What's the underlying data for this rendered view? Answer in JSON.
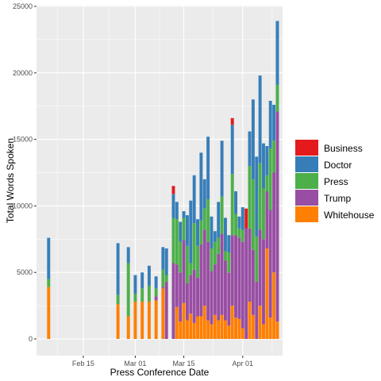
{
  "chart_data": {
    "type": "bar",
    "stacked": true,
    "xlabel": "Press Conference Date",
    "ylabel": "Total Words Spoken",
    "x_ticks": [
      {
        "label": "Feb 15",
        "day": 15
      },
      {
        "label": "Mar 01",
        "day": 30
      },
      {
        "label": "Mar 15",
        "day": 44
      },
      {
        "label": "Apr 01",
        "day": 61
      }
    ],
    "y_ticks": [
      0,
      5000,
      10000,
      15000,
      20000,
      25000
    ],
    "ylim": [
      0,
      25000
    ],
    "xlim_days": [
      1.5,
      72.5
    ],
    "grid": true,
    "legend_position": "right",
    "series": [
      {
        "name": "Business",
        "color": "#E41A1C"
      },
      {
        "name": "Doctor",
        "color": "#377EB8"
      },
      {
        "name": "Press",
        "color": "#4DAF4A"
      },
      {
        "name": "Trump",
        "color": "#984EA3"
      },
      {
        "name": "Whitehouse",
        "color": "#FF7F00"
      }
    ],
    "stack_order_bottom_to_top": [
      "Whitehouse",
      "Trump",
      "Press",
      "Doctor",
      "Business"
    ],
    "bars": [
      {
        "day": 5,
        "Whitehouse": 3900,
        "Trump": 0,
        "Press": 600,
        "Doctor": 3100,
        "Business": 0
      },
      {
        "day": 25,
        "Whitehouse": 2600,
        "Trump": 0,
        "Press": 700,
        "Doctor": 3900,
        "Business": 0
      },
      {
        "day": 28,
        "Whitehouse": 1700,
        "Trump": 0,
        "Press": 4000,
        "Doctor": 1200,
        "Business": 0
      },
      {
        "day": 30,
        "Whitehouse": 2800,
        "Trump": 0,
        "Press": 600,
        "Doctor": 1400,
        "Business": 0
      },
      {
        "day": 32,
        "Whitehouse": 2800,
        "Trump": 0,
        "Press": 1000,
        "Doctor": 1200,
        "Business": 0
      },
      {
        "day": 34,
        "Whitehouse": 2800,
        "Trump": 0,
        "Press": 1200,
        "Doctor": 1500,
        "Business": 0
      },
      {
        "day": 36,
        "Whitehouse": 2900,
        "Trump": 300,
        "Press": 600,
        "Doctor": 900,
        "Business": 0
      },
      {
        "day": 38,
        "Whitehouse": 3800,
        "Trump": 100,
        "Press": 1300,
        "Doctor": 1700,
        "Business": 0
      },
      {
        "day": 39,
        "Whitehouse": 0,
        "Trump": 4300,
        "Press": 500,
        "Doctor": 2000,
        "Business": 0
      },
      {
        "day": 41,
        "Whitehouse": 0,
        "Trump": 5700,
        "Press": 3400,
        "Doctor": 1800,
        "Business": 600
      },
      {
        "day": 42,
        "Whitehouse": 2400,
        "Trump": 3200,
        "Press": 3400,
        "Doctor": 1300,
        "Business": 0
      },
      {
        "day": 43,
        "Whitehouse": 1300,
        "Trump": 3700,
        "Press": 2300,
        "Doctor": 1500,
        "Business": 0
      },
      {
        "day": 44,
        "Whitehouse": 2700,
        "Trump": 4700,
        "Press": 1700,
        "Doctor": 500,
        "Business": 0
      },
      {
        "day": 45,
        "Whitehouse": 1400,
        "Trump": 2800,
        "Press": 2800,
        "Doctor": 2300,
        "Business": 0
      },
      {
        "day": 46,
        "Whitehouse": 1900,
        "Trump": 2900,
        "Press": 900,
        "Doctor": 4700,
        "Business": 0
      },
      {
        "day": 47,
        "Whitehouse": 1200,
        "Trump": 4000,
        "Press": 3500,
        "Doctor": 3600,
        "Business": 0
      },
      {
        "day": 48,
        "Whitehouse": 1700,
        "Trump": 2900,
        "Press": 2400,
        "Doctor": 2000,
        "Business": 0
      },
      {
        "day": 49,
        "Whitehouse": 1700,
        "Trump": 5400,
        "Press": 1800,
        "Doctor": 5100,
        "Business": 0
      },
      {
        "day": 50,
        "Whitehouse": 2500,
        "Trump": 5700,
        "Press": 1600,
        "Doctor": 2200,
        "Business": 0
      },
      {
        "day": 51,
        "Whitehouse": 1400,
        "Trump": 5900,
        "Press": 3200,
        "Doctor": 4700,
        "Business": 0
      },
      {
        "day": 52,
        "Whitehouse": 1100,
        "Trump": 4000,
        "Press": 1700,
        "Doctor": 2400,
        "Business": 0
      },
      {
        "day": 53,
        "Whitehouse": 1800,
        "Trump": 3800,
        "Press": 1700,
        "Doctor": 800,
        "Business": 0
      },
      {
        "day": 54,
        "Whitehouse": 1400,
        "Trump": 5000,
        "Press": 1200,
        "Doctor": 2700,
        "Business": 0
      },
      {
        "day": 55,
        "Whitehouse": 1800,
        "Trump": 6100,
        "Press": 2800,
        "Doctor": 4200,
        "Business": 0
      },
      {
        "day": 56,
        "Whitehouse": 1400,
        "Trump": 4500,
        "Press": 700,
        "Doctor": 2500,
        "Business": 0
      },
      {
        "day": 57,
        "Whitehouse": 1000,
        "Trump": 4000,
        "Press": 1500,
        "Doctor": 1300,
        "Business": 0
      },
      {
        "day": 58,
        "Whitehouse": 2500,
        "Trump": 5300,
        "Press": 4600,
        "Doctor": 3700,
        "Business": 500
      },
      {
        "day": 59,
        "Whitehouse": 1600,
        "Trump": 6200,
        "Press": 1600,
        "Doctor": 1700,
        "Business": 0
      },
      {
        "day": 60,
        "Whitehouse": 1500,
        "Trump": 6100,
        "Press": 700,
        "Doctor": 900,
        "Business": 0
      },
      {
        "day": 61,
        "Whitehouse": 800,
        "Trump": 6500,
        "Press": 900,
        "Doctor": 1700,
        "Business": 0
      },
      {
        "day": 62,
        "Whitehouse": 0,
        "Trump": 8300,
        "Press": 0,
        "Doctor": 0,
        "Business": 1500
      },
      {
        "day": 63,
        "Whitehouse": 2800,
        "Trump": 5500,
        "Press": 4700,
        "Doctor": 2600,
        "Business": 0
      },
      {
        "day": 64,
        "Whitehouse": 1800,
        "Trump": 4900,
        "Press": 5300,
        "Doctor": 6000,
        "Business": 0
      },
      {
        "day": 65,
        "Whitehouse": 0,
        "Trump": 4300,
        "Press": 3400,
        "Doctor": 6000,
        "Business": 0
      },
      {
        "day": 66,
        "Whitehouse": 2500,
        "Trump": 5700,
        "Press": 5000,
        "Doctor": 6600,
        "Business": 0
      },
      {
        "day": 67,
        "Whitehouse": 1100,
        "Trump": 6400,
        "Press": 3800,
        "Doctor": 3400,
        "Business": 0
      },
      {
        "day": 68,
        "Whitehouse": 6800,
        "Trump": 4300,
        "Press": 1200,
        "Doctor": 2200,
        "Business": 0
      },
      {
        "day": 69,
        "Whitehouse": 1600,
        "Trump": 8100,
        "Press": 4600,
        "Doctor": 3600,
        "Business": 0
      },
      {
        "day": 70,
        "Whitehouse": 5000,
        "Trump": 7500,
        "Press": 2400,
        "Doctor": 2700,
        "Business": 0
      },
      {
        "day": 71,
        "Whitehouse": 1300,
        "Trump": 15800,
        "Press": 2000,
        "Doctor": 4800,
        "Business": 0
      }
    ]
  }
}
